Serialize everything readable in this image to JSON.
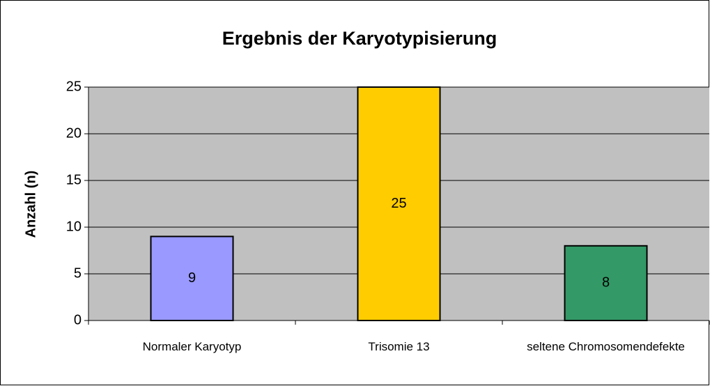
{
  "chart_data": {
    "type": "bar",
    "title": "Ergebnis der Karyotypisierung",
    "y_label": "Anzahl (n)",
    "categories": [
      "Normaler Karyotyp",
      "Trisomie 13",
      "seltene Chromosomendefekte"
    ],
    "values": [
      9,
      25,
      8
    ],
    "colors": [
      "#9999ff",
      "#ffcc00",
      "#339966"
    ],
    "ylim": [
      0,
      25
    ],
    "yticks": [
      0,
      5,
      10,
      15,
      20,
      25
    ],
    "grid": true
  }
}
